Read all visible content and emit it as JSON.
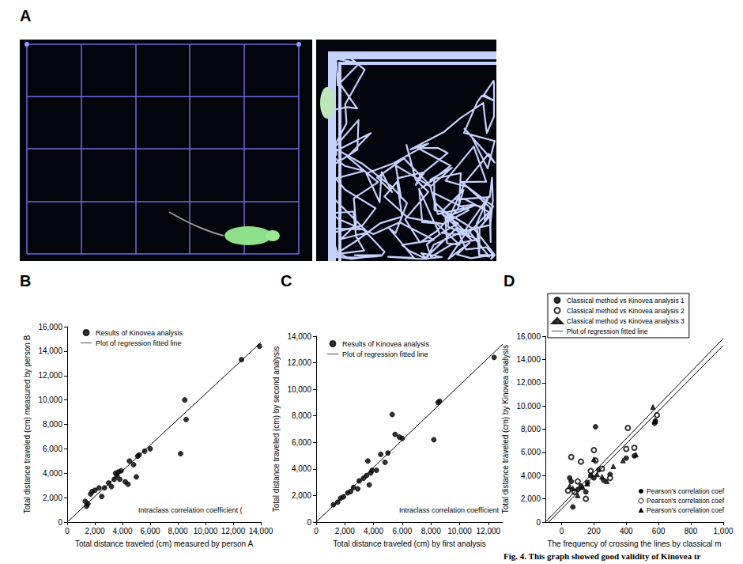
{
  "figure": {
    "panel_a": {
      "title": "A"
    },
    "caption": "Fig. 4. This graph showed good validity of Kinovea tr"
  },
  "chart_data": [
    {
      "title": "B",
      "type": "scatter",
      "xlabel": "Total distance traveled (cm) measured by person A",
      "ylabel": "Total distance traveled (cm) measured by person B",
      "xlim": [
        0,
        14000
      ],
      "xticks": [
        0,
        {
          "value": 2000,
          "label": "2,000"
        },
        {
          "value": 4000,
          "label": "4,000"
        },
        {
          "value": 6000,
          "label": "6,000"
        },
        {
          "value": 8000,
          "label": "8,000"
        },
        {
          "value": 10000,
          "label": "10,000"
        },
        {
          "value": 12000,
          "label": "12,000"
        },
        {
          "value": 14000,
          "label": "14,000"
        }
      ],
      "ylim": [
        0,
        16000
      ],
      "yticks": [
        0,
        {
          "value": 2000,
          "label": "2,000"
        },
        {
          "value": 4000,
          "label": "4,000"
        },
        {
          "value": 6000,
          "label": "6,000"
        },
        {
          "value": 8000,
          "label": "8,000"
        },
        {
          "value": 10000,
          "label": "10,000"
        },
        {
          "value": 12000,
          "label": "12,000"
        },
        {
          "value": 14000,
          "label": "14,000"
        },
        {
          "value": 16000,
          "label": "16,000"
        }
      ],
      "grid": false,
      "legend": "upper left",
      "annotations": [
        {
          "text": "Intraclass correlation coefficient ("
        }
      ],
      "series": [
        {
          "name": "Results of Kinovea analysis",
          "type": "scatter",
          "marker": "circle",
          "color": "#000000",
          "x": [
            1300,
            1400,
            1500,
            1700,
            1800,
            2000,
            2300,
            2500,
            2700,
            3000,
            3200,
            3400,
            3500,
            3600,
            3700,
            3800,
            3900,
            4200,
            4400,
            4500,
            4800,
            5000,
            5100,
            5200,
            5600,
            6000,
            8200,
            8500,
            8600,
            12600,
            13900
          ],
          "values": [
            1700,
            1300,
            1500,
            2300,
            2500,
            2600,
            2800,
            2100,
            2800,
            3200,
            2900,
            3500,
            4000,
            3800,
            4100,
            3500,
            4200,
            3300,
            3100,
            5000,
            4700,
            3700,
            5400,
            5500,
            5800,
            6000,
            5600,
            10000,
            8400,
            13300,
            14400
          ]
        },
        {
          "name": "Plot of regression fitted line",
          "type": "line",
          "line_style": "solid",
          "color": "#000000",
          "x": [
            0,
            14000
          ],
          "values": [
            0,
            14700
          ]
        }
      ]
    },
    {
      "title": "C",
      "type": "scatter",
      "xlabel": "Total distance traveled (cm) by first analysis",
      "ylabel": "Total distance traveled (cm) by second analysis",
      "xlim": [
        0,
        13000
      ],
      "xticks": [
        0,
        {
          "value": 2000,
          "label": "2,000"
        },
        {
          "value": 4000,
          "label": "4,000"
        },
        {
          "value": 6000,
          "label": "6,000"
        },
        {
          "value": 8000,
          "label": "8,000"
        },
        {
          "value": 10000,
          "label": "10,000"
        },
        {
          "value": 12000,
          "label": "12,000"
        }
      ],
      "ylim": [
        0,
        14000
      ],
      "yticks": [
        0,
        {
          "value": 2000,
          "label": "2,000"
        },
        {
          "value": 4000,
          "label": "4,000"
        },
        {
          "value": 6000,
          "label": "6,000"
        },
        {
          "value": 8000,
          "label": "8,000"
        },
        {
          "value": 10000,
          "label": "10,000"
        },
        {
          "value": 12000,
          "label": "12,000"
        },
        {
          "value": 14000,
          "label": "14,000"
        }
      ],
      "grid": false,
      "legend": "upper left",
      "annotations": [
        {
          "text": "Intraclass correlation coefficient"
        }
      ],
      "series": [
        {
          "name": "Results of Kinovea analysis",
          "type": "scatter",
          "marker": "circle",
          "color": "#000000",
          "x": [
            1200,
            1500,
            1700,
            1900,
            2200,
            2400,
            2600,
            2900,
            3000,
            3300,
            3500,
            3600,
            3700,
            3800,
            3900,
            4200,
            4500,
            4800,
            5000,
            5300,
            5500,
            5800,
            6000,
            8200,
            8500,
            8600,
            12400
          ],
          "values": [
            1300,
            1500,
            1800,
            1900,
            2200,
            2300,
            2600,
            2500,
            3100,
            3300,
            3500,
            4600,
            2800,
            3700,
            3900,
            3900,
            5100,
            4500,
            5200,
            8100,
            6600,
            6400,
            6300,
            6200,
            9000,
            9100,
            12400
          ]
        },
        {
          "name": "Plot of regression fitted line",
          "type": "line",
          "line_style": "solid",
          "color": "#000000",
          "x": [
            0,
            13000
          ],
          "values": [
            0,
            13400
          ]
        }
      ]
    },
    {
      "title": "D",
      "type": "scatter",
      "xlabel": "The frequency of crossing the lines by classical m",
      "ylabel": "Total distance traveled (cm) by Kinovea analysis",
      "xlim": [
        -100,
        1000
      ],
      "xticks": [
        0,
        200,
        400,
        600,
        800,
        {
          "value": 1000,
          "label": "1,000"
        }
      ],
      "ylim": [
        0,
        16000
      ],
      "yticks": [
        0,
        {
          "value": 2000,
          "label": "2,000"
        },
        {
          "value": 4000,
          "label": "4,000"
        },
        {
          "value": 6000,
          "label": "6,000"
        },
        {
          "value": 8000,
          "label": "8,000"
        },
        {
          "value": 10000,
          "label": "10,000"
        },
        {
          "value": 12000,
          "label": "12,000"
        },
        {
          "value": 14000,
          "label": "14,000"
        },
        {
          "value": 16000,
          "label": "16,000"
        }
      ],
      "grid": false,
      "legend": "upper left",
      "annotations": [
        {
          "text": "Pearson's correlation coef",
          "marker": "circle"
        },
        {
          "text": "Pearson's correlation coef",
          "marker": "open_circle"
        },
        {
          "text": "Pearson's correlation coef",
          "marker": "triangle"
        }
      ],
      "series": [
        {
          "name": "Classical method vs Kinovea analysis 1",
          "type": "scatter",
          "marker": "circle",
          "color": "#000000",
          "x": [
            50,
            60,
            70,
            100,
            120,
            150,
            160,
            180,
            200,
            210,
            230,
            260,
            300,
            400,
            450,
            575,
            580
          ],
          "values": [
            3800,
            3500,
            1300,
            2800,
            3100,
            2600,
            3400,
            4000,
            3800,
            8200,
            4500,
            3600,
            4100,
            5500,
            5700,
            8500,
            8700
          ]
        },
        {
          "name": "Classical method vs Kinovea analysis 2",
          "type": "scatter",
          "marker": "open_circle",
          "color": "#000000",
          "x": [
            40,
            60,
            80,
            100,
            120,
            150,
            180,
            200,
            210,
            250,
            300,
            400,
            410,
            450,
            590
          ],
          "values": [
            2700,
            5600,
            2600,
            3500,
            5200,
            2000,
            4400,
            6200,
            5300,
            4600,
            3800,
            6300,
            8100,
            6400,
            9200
          ]
        },
        {
          "name": "Classical method vs Kinovea analysis 3",
          "type": "scatter",
          "marker": "triangle",
          "color": "#000000",
          "x": [
            50,
            70,
            100,
            130,
            160,
            200,
            220,
            250,
            280,
            320,
            380,
            460,
            565,
            580
          ],
          "values": [
            3100,
            2900,
            2300,
            3000,
            3300,
            5400,
            4100,
            3900,
            3500,
            4800,
            5300,
            5800,
            9900,
            8700
          ]
        },
        {
          "name": "Plot of regression fitted line",
          "type": "line",
          "line_style": "solid",
          "color": "#000000",
          "x": [
            -100,
            1000
          ],
          "values": [
            0,
            15800
          ]
        },
        {
          "name": "Plot of regression fitted line",
          "type": "line",
          "line_style": "solid",
          "color": "#000000",
          "x": [
            -80,
            1000
          ],
          "values": [
            0,
            15200
          ]
        }
      ]
    }
  ]
}
